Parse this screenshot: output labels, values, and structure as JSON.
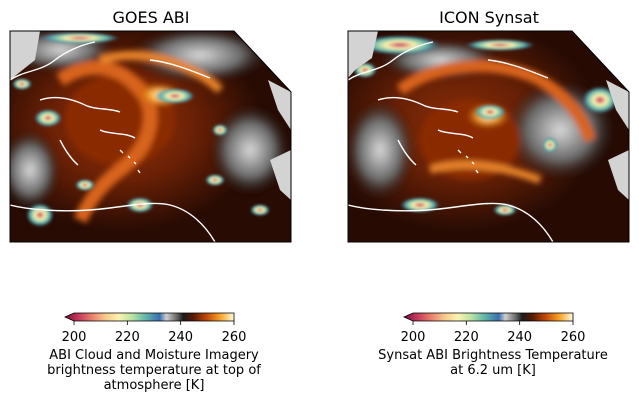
{
  "chart_data": [
    {
      "type": "heatmap",
      "title": "GOES ABI",
      "colorbar": {
        "min": 200,
        "max": 260,
        "extend": "min",
        "ticks": [
          200,
          220,
          240,
          260
        ],
        "label": "ABI Cloud and Moisture Imagery brightness temperature at top of atmosphere [K]"
      }
    },
    {
      "type": "heatmap",
      "title": "ICON Synsat",
      "colorbar": {
        "min": 200,
        "max": 260,
        "extend": "min",
        "ticks": [
          200,
          220,
          240,
          260
        ],
        "label": "Synsat ABI Brightness Temperature at 6.2 um [K]"
      }
    }
  ],
  "colors": {
    "land_mask": "#d3d3d3",
    "coastline": "#ffffff",
    "colormap": [
      "#7a0f3c",
      "#c43a5a",
      "#e8806e",
      "#f7c98a",
      "#fbf3ae",
      "#b6e0a4",
      "#5fb3a8",
      "#3b6fb0",
      "#262626",
      "#3a1a08",
      "#7a2505",
      "#c24a0a",
      "#ec8a1a",
      "#fcd76a",
      "#fffce0"
    ]
  }
}
